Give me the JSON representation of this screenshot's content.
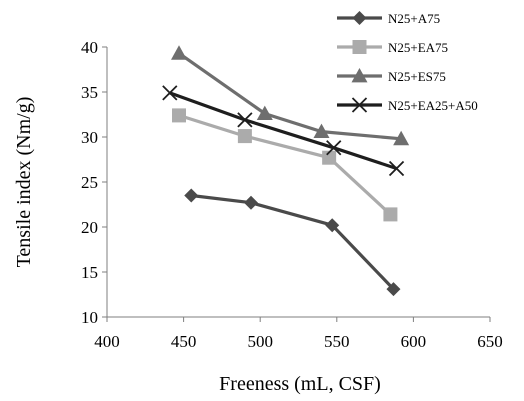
{
  "chart_data": {
    "type": "line",
    "title": "",
    "xlabel": "Freeness (mL, CSF)",
    "ylabel": "Tensile index (Nm/g)",
    "xlim": [
      400,
      650
    ],
    "ylim": [
      10,
      40
    ],
    "xticks": [
      400,
      450,
      500,
      550,
      600,
      650
    ],
    "yticks": [
      10,
      15,
      20,
      25,
      30,
      35,
      40
    ],
    "grid": false,
    "legend_position": "top-right",
    "series": [
      {
        "name": "N25+A75",
        "color": "#4a4a4a",
        "marker": "diamond",
        "points": [
          [
            455,
            23.5
          ],
          [
            494,
            22.7
          ],
          [
            547,
            20.2
          ],
          [
            587,
            13.1
          ]
        ]
      },
      {
        "name": "N25+EA75",
        "color": "#ababab",
        "marker": "square",
        "points": [
          [
            447,
            32.4
          ],
          [
            490,
            30.1
          ],
          [
            545,
            27.7
          ],
          [
            585,
            21.4
          ]
        ]
      },
      {
        "name": "N25+ES75",
        "color": "#6e6e6e",
        "marker": "triangle",
        "points": [
          [
            447,
            39.3
          ],
          [
            503,
            32.6
          ],
          [
            540,
            30.6
          ],
          [
            592,
            29.8
          ]
        ]
      },
      {
        "name": "N25+EA25+A50",
        "color": "#1e1e1e",
        "marker": "x",
        "points": [
          [
            441,
            34.9
          ],
          [
            490,
            31.9
          ],
          [
            548,
            28.8
          ],
          [
            589,
            26.5
          ]
        ]
      }
    ]
  }
}
